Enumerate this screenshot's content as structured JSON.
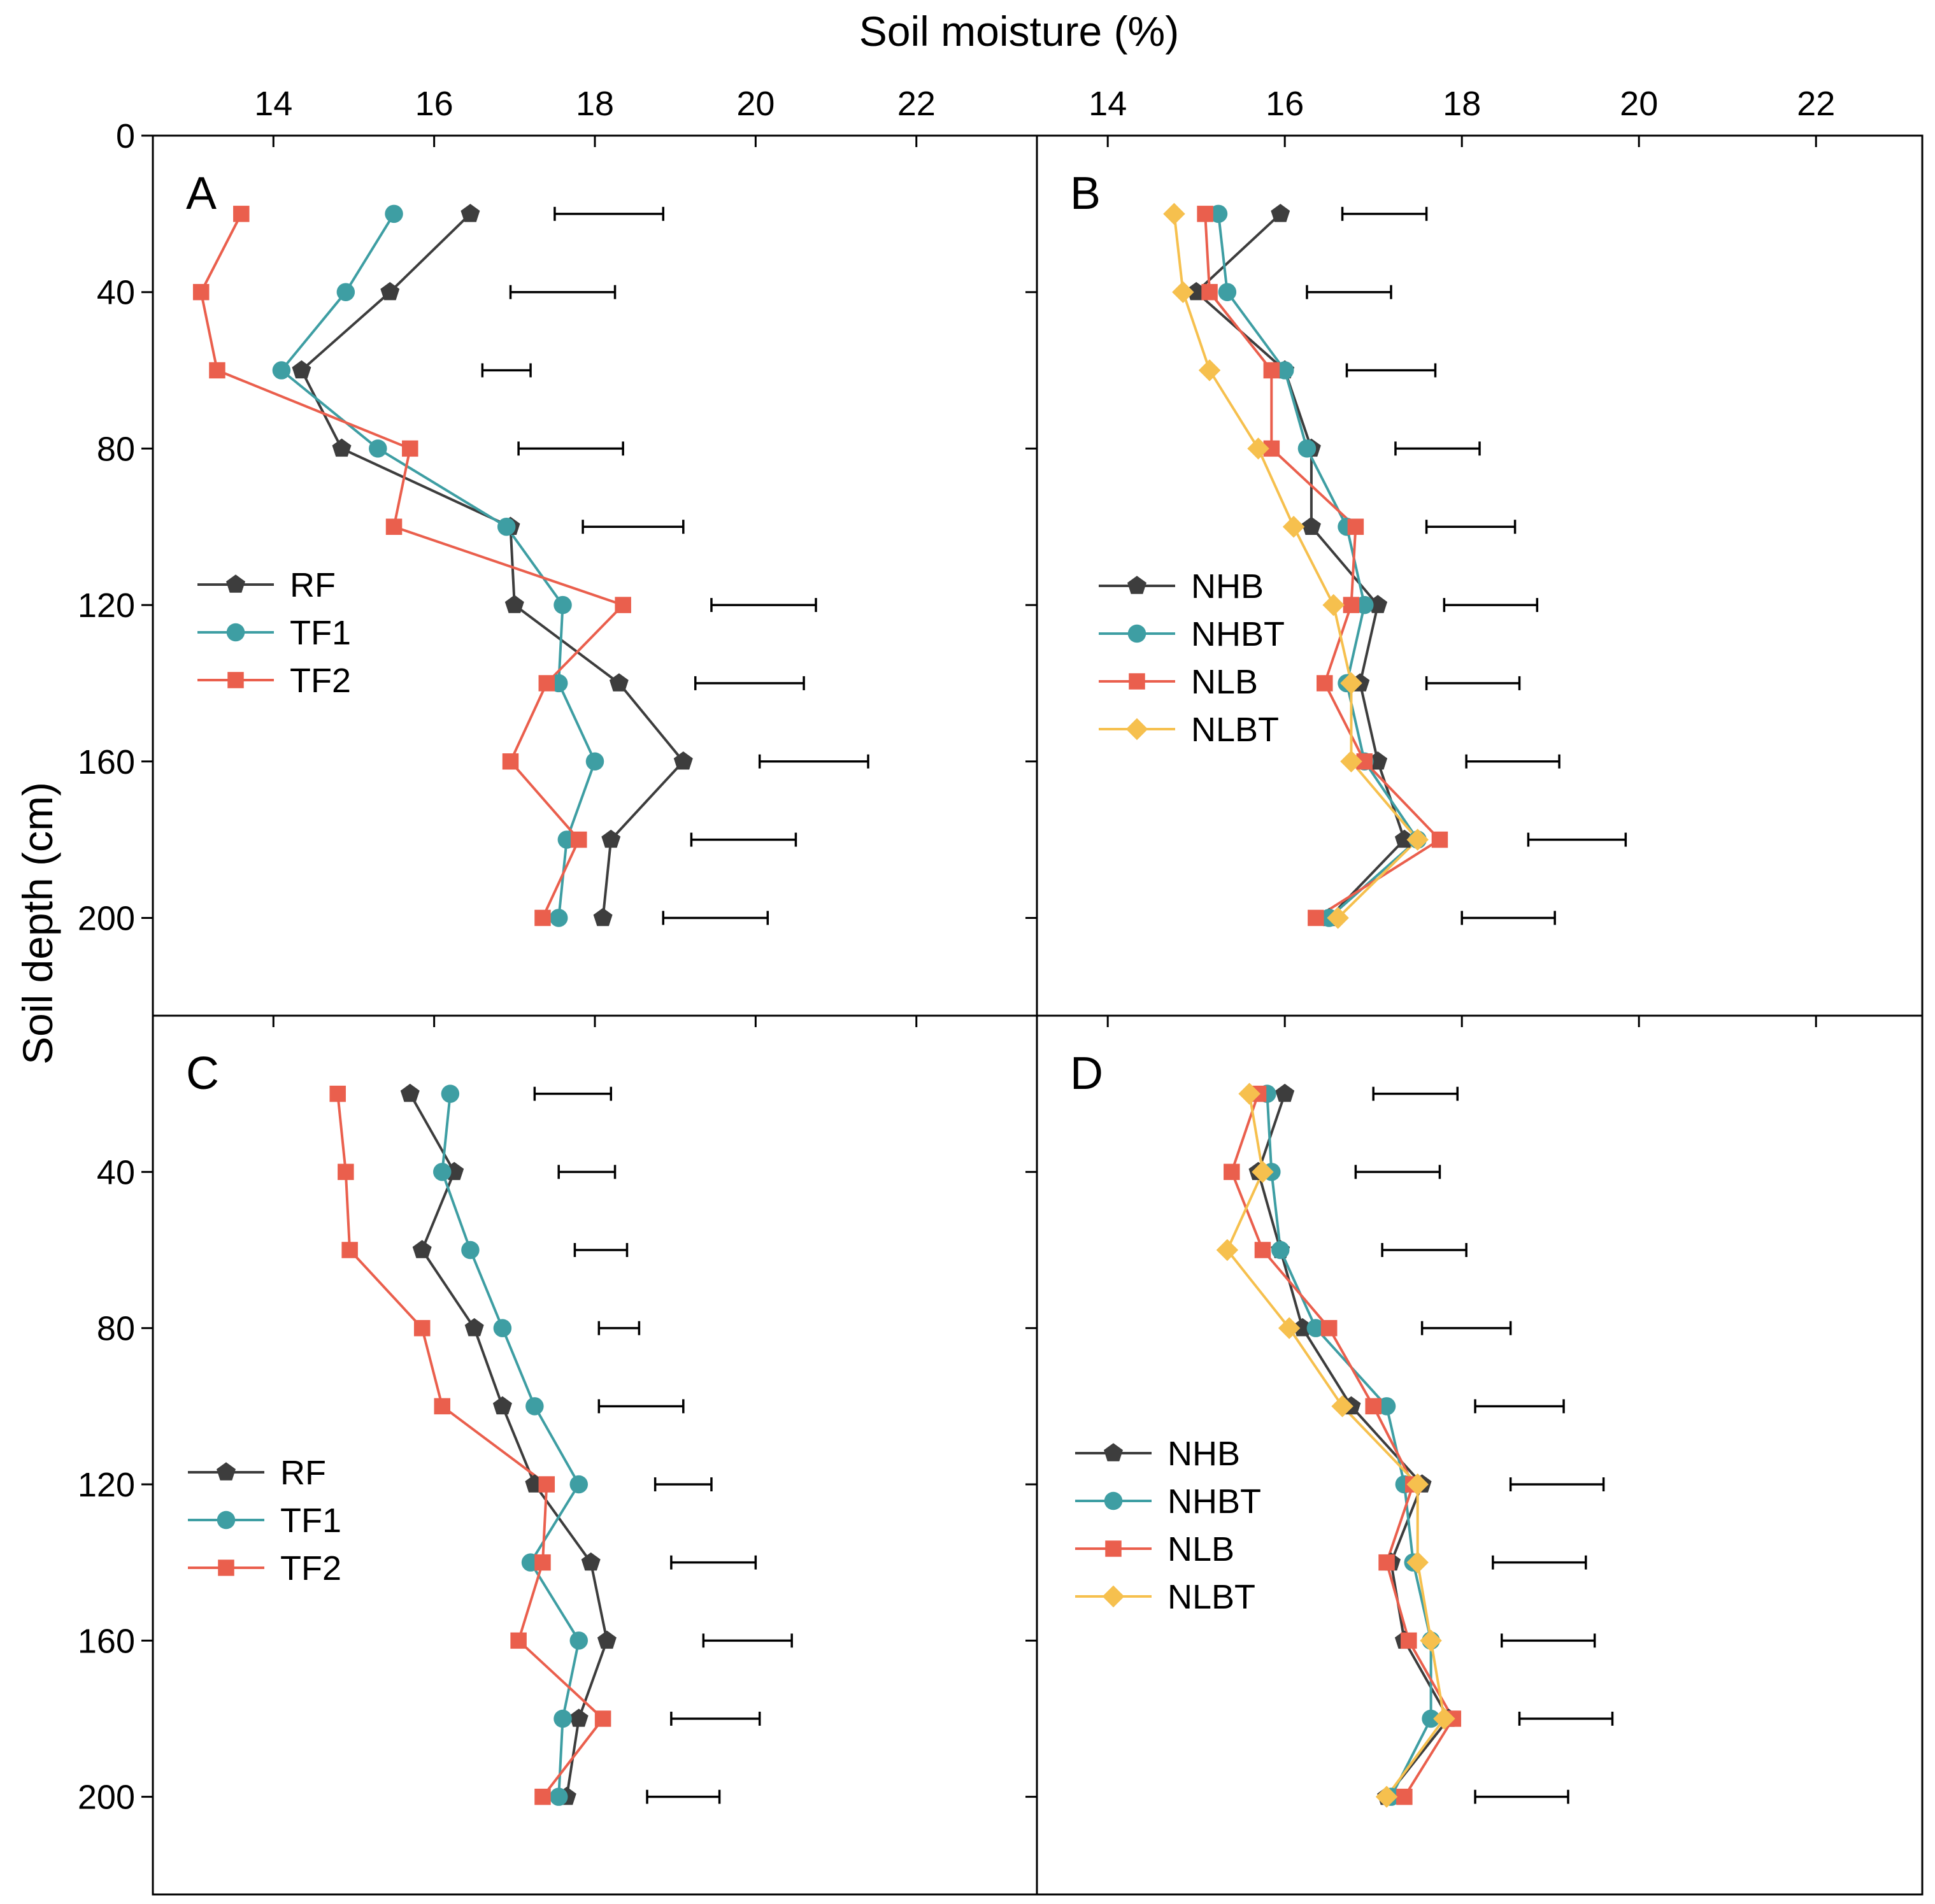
{
  "figure": {
    "xlabel": "Soil moisture (%)",
    "ylabel": "Soil depth (cm)",
    "colors": {
      "RF": "#3d3d3d",
      "TF1": "#3e9ea3",
      "TF2": "#ea5f4d",
      "NHB": "#3d3d3d",
      "NHBT": "#3e9ea3",
      "NLB": "#ea5f4d",
      "NLBT": "#f6c04e"
    },
    "markers": {
      "RF": "pentagon",
      "TF1": "circle",
      "TF2": "square",
      "NHB": "pentagon",
      "NHBT": "circle",
      "NLB": "square",
      "NLBT": "diamond"
    }
  },
  "chart_data": [
    {
      "type": "line",
      "panel_label": "A",
      "xlabel": "Soil moisture (%)",
      "ylabel": "Soil depth (cm)",
      "xlim": [
        12.5,
        23.5
      ],
      "ylim": [
        0,
        225
      ],
      "x_ticks": [
        14,
        16,
        18,
        20,
        22
      ],
      "y_ticks": [
        0,
        40,
        80,
        120,
        160,
        200
      ],
      "y": [
        20,
        40,
        60,
        80,
        100,
        120,
        140,
        160,
        180,
        200
      ],
      "legend_position": "left-middle",
      "series": [
        {
          "name": "RF",
          "values": [
            16.45,
            15.45,
            14.35,
            14.85,
            16.95,
            17.0,
            18.3,
            19.1,
            18.2,
            18.1
          ]
        },
        {
          "name": "TF1",
          "values": [
            15.5,
            14.9,
            14.1,
            15.3,
            16.9,
            17.6,
            17.55,
            18.0,
            17.65,
            17.55
          ]
        },
        {
          "name": "TF2",
          "values": [
            13.6,
            13.1,
            13.3,
            15.7,
            15.5,
            18.35,
            17.4,
            16.95,
            17.8,
            17.35
          ]
        }
      ],
      "error_bars": [
        {
          "y": 20,
          "x_start": 17.5,
          "x_end": 18.85
        },
        {
          "y": 40,
          "x_start": 16.95,
          "x_end": 18.25
        },
        {
          "y": 60,
          "x_start": 16.6,
          "x_end": 17.2
        },
        {
          "y": 80,
          "x_start": 17.05,
          "x_end": 18.35
        },
        {
          "y": 100,
          "x_start": 17.85,
          "x_end": 19.1
        },
        {
          "y": 120,
          "x_start": 19.45,
          "x_end": 20.75
        },
        {
          "y": 140,
          "x_start": 19.25,
          "x_end": 20.6
        },
        {
          "y": 160,
          "x_start": 20.05,
          "x_end": 21.4
        },
        {
          "y": 180,
          "x_start": 19.2,
          "x_end": 20.5
        },
        {
          "y": 200,
          "x_start": 18.85,
          "x_end": 20.15
        }
      ]
    },
    {
      "type": "line",
      "panel_label": "B",
      "xlabel": "Soil moisture (%)",
      "ylabel": "Soil depth (cm)",
      "xlim": [
        13.2,
        23.2
      ],
      "ylim": [
        0,
        225
      ],
      "x_ticks": [
        14,
        16,
        18,
        20,
        22
      ],
      "y_ticks": [
        0,
        40,
        80,
        120,
        160,
        200
      ],
      "y": [
        20,
        40,
        60,
        80,
        100,
        120,
        140,
        160,
        180,
        200
      ],
      "legend_position": "left-middle",
      "series": [
        {
          "name": "NHB",
          "values": [
            15.95,
            15.0,
            16.0,
            16.3,
            16.3,
            17.05,
            16.85,
            17.05,
            17.35,
            16.5
          ]
        },
        {
          "name": "NHBT",
          "values": [
            15.25,
            15.35,
            16.0,
            16.25,
            16.7,
            16.9,
            16.7,
            16.9,
            17.5,
            16.5
          ]
        },
        {
          "name": "NLB",
          "values": [
            15.1,
            15.15,
            15.85,
            15.85,
            16.8,
            16.75,
            16.45,
            16.9,
            17.75,
            16.35
          ]
        },
        {
          "name": "NLBT",
          "values": [
            14.75,
            14.85,
            15.15,
            15.7,
            16.1,
            16.55,
            16.75,
            16.75,
            17.5,
            16.6
          ]
        }
      ],
      "error_bars": [
        {
          "y": 20,
          "x_start": 16.65,
          "x_end": 17.6
        },
        {
          "y": 40,
          "x_start": 16.25,
          "x_end": 17.2
        },
        {
          "y": 60,
          "x_start": 16.7,
          "x_end": 17.7
        },
        {
          "y": 80,
          "x_start": 17.25,
          "x_end": 18.2
        },
        {
          "y": 100,
          "x_start": 17.6,
          "x_end": 18.6
        },
        {
          "y": 120,
          "x_start": 17.8,
          "x_end": 18.85
        },
        {
          "y": 140,
          "x_start": 17.6,
          "x_end": 18.65
        },
        {
          "y": 160,
          "x_start": 18.05,
          "x_end": 19.1
        },
        {
          "y": 180,
          "x_start": 18.75,
          "x_end": 19.85
        },
        {
          "y": 200,
          "x_start": 18.0,
          "x_end": 19.05
        }
      ]
    },
    {
      "type": "line",
      "panel_label": "C",
      "xlabel": "Soil moisture (%)",
      "ylabel": "Soil depth (cm)",
      "xlim": [
        12.5,
        23.5
      ],
      "ylim": [
        0,
        225
      ],
      "x_ticks": [
        14,
        16,
        18,
        20,
        22
      ],
      "y_ticks": [
        40,
        80,
        120,
        160,
        200
      ],
      "y": [
        20,
        40,
        60,
        80,
        100,
        120,
        140,
        160,
        180,
        200
      ],
      "legend_position": "left-middle",
      "series": [
        {
          "name": "RF",
          "values": [
            15.7,
            16.25,
            15.85,
            16.5,
            16.85,
            17.25,
            17.95,
            18.15,
            17.8,
            17.65
          ]
        },
        {
          "name": "TF1",
          "values": [
            16.2,
            16.1,
            16.45,
            16.85,
            17.25,
            17.8,
            17.2,
            17.8,
            17.6,
            17.55
          ]
        },
        {
          "name": "TF2",
          "values": [
            14.8,
            14.9,
            14.95,
            15.85,
            16.1,
            17.4,
            17.35,
            17.05,
            18.1,
            17.35
          ]
        }
      ],
      "error_bars": [
        {
          "y": 20,
          "x_start": 17.25,
          "x_end": 18.2
        },
        {
          "y": 40,
          "x_start": 17.55,
          "x_end": 18.25
        },
        {
          "y": 60,
          "x_start": 17.75,
          "x_end": 18.4
        },
        {
          "y": 80,
          "x_start": 18.05,
          "x_end": 18.55
        },
        {
          "y": 100,
          "x_start": 18.05,
          "x_end": 19.1
        },
        {
          "y": 120,
          "x_start": 18.75,
          "x_end": 19.45
        },
        {
          "y": 140,
          "x_start": 18.95,
          "x_end": 20.0
        },
        {
          "y": 160,
          "x_start": 19.35,
          "x_end": 20.45
        },
        {
          "y": 180,
          "x_start": 18.95,
          "x_end": 20.05
        },
        {
          "y": 200,
          "x_start": 18.65,
          "x_end": 19.55
        }
      ]
    },
    {
      "type": "line",
      "panel_label": "D",
      "xlabel": "Soil moisture (%)",
      "ylabel": "Soil depth (cm)",
      "xlim": [
        13.2,
        23.2
      ],
      "ylim": [
        0,
        225
      ],
      "x_ticks": [
        14,
        16,
        18,
        20,
        22
      ],
      "y_ticks": [
        40,
        80,
        120,
        160,
        200
      ],
      "y": [
        20,
        40,
        60,
        80,
        100,
        120,
        140,
        160,
        180,
        200
      ],
      "legend_position": "left-middle",
      "series": [
        {
          "name": "NHB",
          "values": [
            16.0,
            15.7,
            15.95,
            16.2,
            16.75,
            17.55,
            17.2,
            17.35,
            17.85,
            17.15
          ]
        },
        {
          "name": "NHBT",
          "values": [
            15.8,
            15.85,
            15.95,
            16.35,
            17.15,
            17.35,
            17.45,
            17.65,
            17.65,
            17.2
          ]
        },
        {
          "name": "NLB",
          "values": [
            15.7,
            15.4,
            15.75,
            16.5,
            17.0,
            17.45,
            17.15,
            17.4,
            17.9,
            17.35
          ]
        },
        {
          "name": "NLBT",
          "values": [
            15.6,
            15.75,
            15.35,
            16.05,
            16.65,
            17.5,
            17.5,
            17.65,
            17.8,
            17.15
          ]
        }
      ],
      "error_bars": [
        {
          "y": 20,
          "x_start": 17.0,
          "x_end": 17.95
        },
        {
          "y": 40,
          "x_start": 16.8,
          "x_end": 17.75
        },
        {
          "y": 60,
          "x_start": 17.1,
          "x_end": 18.05
        },
        {
          "y": 80,
          "x_start": 17.55,
          "x_end": 18.55
        },
        {
          "y": 100,
          "x_start": 18.15,
          "x_end": 19.15
        },
        {
          "y": 120,
          "x_start": 18.55,
          "x_end": 19.6
        },
        {
          "y": 140,
          "x_start": 18.35,
          "x_end": 19.4
        },
        {
          "y": 160,
          "x_start": 18.45,
          "x_end": 19.5
        },
        {
          "y": 180,
          "x_start": 18.65,
          "x_end": 19.7
        },
        {
          "y": 200,
          "x_start": 18.15,
          "x_end": 19.2
        }
      ]
    }
  ]
}
